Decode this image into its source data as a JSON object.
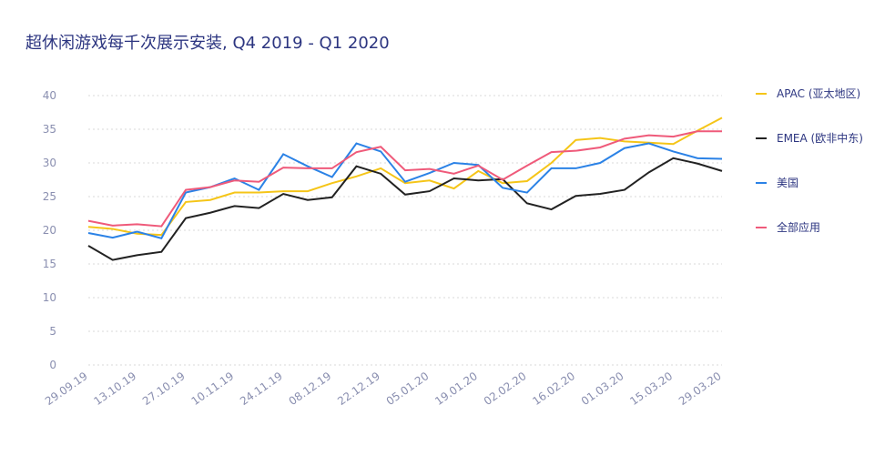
{
  "chart_data": {
    "type": "line",
    "title": "超休闲游戏每千次展示安装, Q4 2019 - Q1 2020",
    "categories": [
      "29.09.19",
      null,
      "13.10.19",
      null,
      "27.10.19",
      null,
      "10.11.19",
      null,
      "24.11.19",
      null,
      "08.12.19",
      null,
      "22.12.19",
      null,
      "05.01.20",
      null,
      "19.01.20",
      null,
      "02.02.20",
      null,
      "16.02.20",
      null,
      "01.03.20",
      null,
      "15.03.20",
      null,
      "29.03.20"
    ],
    "series": [
      {
        "name": "APAC (亚太地区)",
        "color": "#f5c518",
        "values": [
          20.5,
          20.2,
          19.5,
          19.3,
          24.2,
          24.5,
          25.6,
          25.6,
          25.8,
          25.8,
          27.0,
          28.0,
          29.2,
          27.0,
          27.4,
          26.2,
          28.8,
          27.0,
          27.3,
          30.0,
          33.4,
          33.7,
          33.2,
          33.0,
          32.8,
          34.8,
          36.7
        ]
      },
      {
        "name": "EMEA (欧非中东)",
        "color": "#222222",
        "values": [
          17.7,
          15.6,
          16.3,
          16.8,
          21.8,
          22.6,
          23.6,
          23.3,
          25.4,
          24.5,
          24.9,
          29.5,
          28.4,
          25.3,
          25.8,
          27.7,
          27.4,
          27.6,
          24.0,
          23.1,
          25.1,
          25.4,
          26.0,
          28.6,
          30.7,
          29.9,
          28.8
        ]
      },
      {
        "name": "美国",
        "color": "#2b82e6",
        "values": [
          19.6,
          18.9,
          19.8,
          18.8,
          25.6,
          26.4,
          27.7,
          26.0,
          31.3,
          29.5,
          27.9,
          32.9,
          31.7,
          27.2,
          28.5,
          30.0,
          29.7,
          26.3,
          25.6,
          29.2,
          29.2,
          30.0,
          32.2,
          32.9,
          31.7,
          30.7,
          30.6
        ]
      },
      {
        "name": "全部应用",
        "color": "#ef5a7a",
        "values": [
          21.4,
          20.7,
          20.9,
          20.6,
          26.0,
          26.4,
          27.4,
          27.2,
          29.3,
          29.2,
          29.2,
          31.6,
          32.4,
          28.9,
          29.1,
          28.4,
          29.6,
          27.5,
          29.6,
          31.6,
          31.8,
          32.3,
          33.6,
          34.1,
          33.9,
          34.7,
          34.7
        ]
      }
    ],
    "ylim": [
      0,
      40
    ],
    "yticks": [
      0,
      5,
      10,
      15,
      20,
      25,
      30,
      35,
      40
    ],
    "grid": true,
    "legend": "right"
  }
}
